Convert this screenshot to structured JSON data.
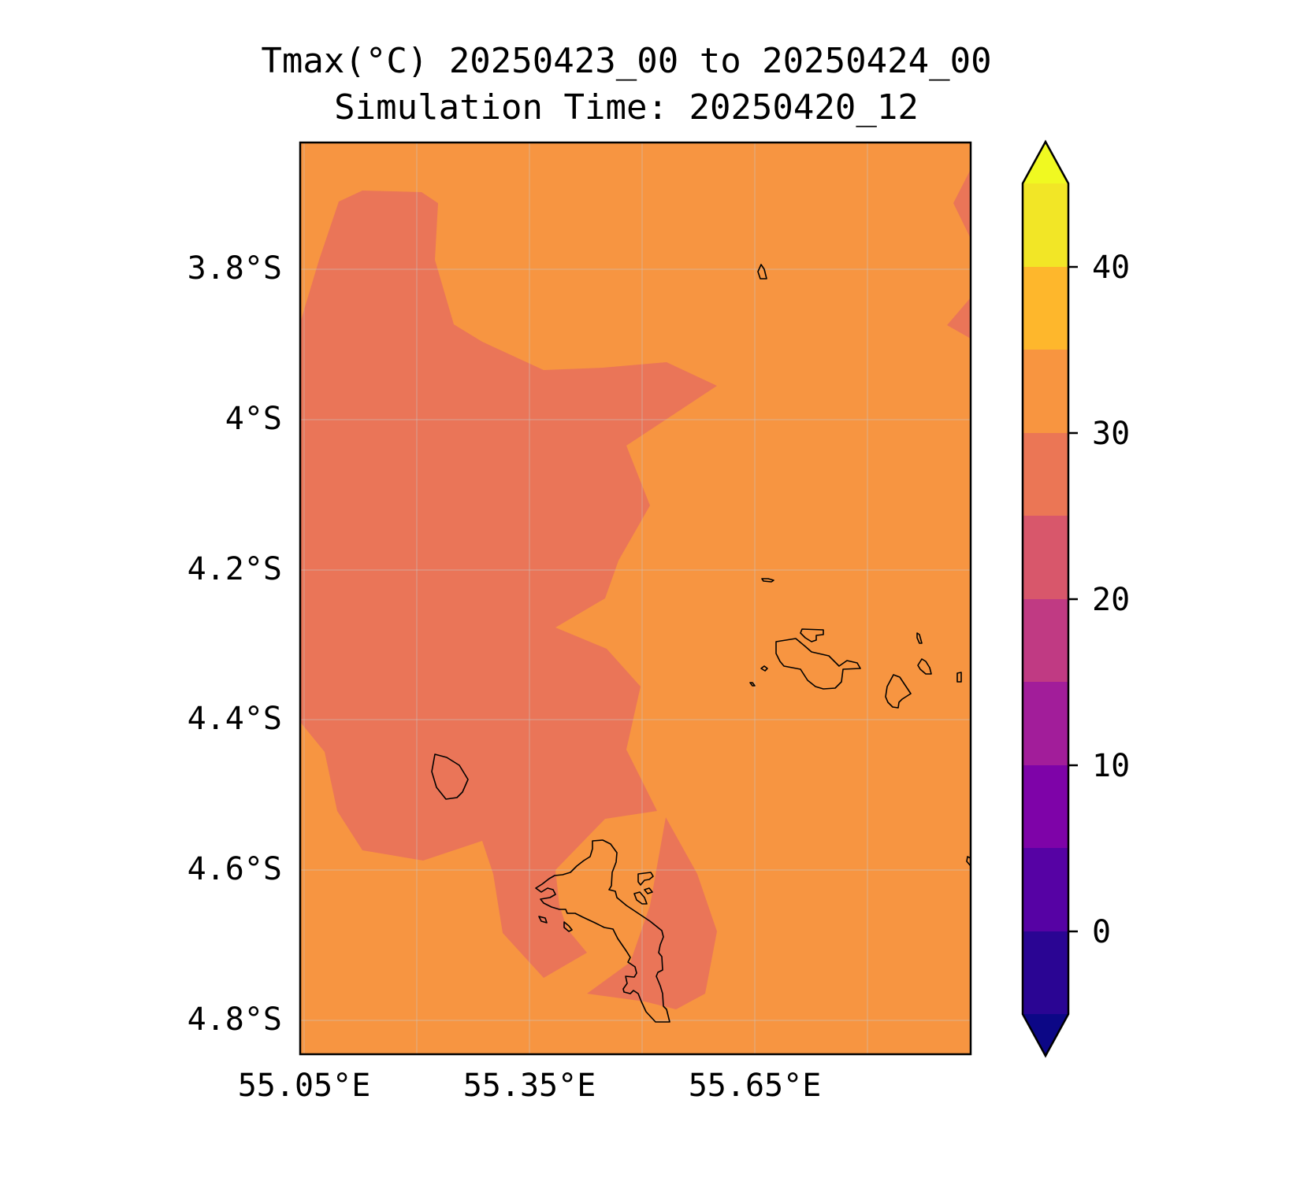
{
  "title": {
    "line1": "Tmax(°C) 20250423_00 to 20250424_00",
    "line2": "Simulation Time: 20250420_12"
  },
  "map": {
    "y_tick_labels": [
      "3.8°S",
      "4°S",
      "4.2°S",
      "4.4°S",
      "4.6°S",
      "4.8°S"
    ],
    "x_tick_labels": [
      "55.05°E",
      "55.35°E",
      "55.65°E"
    ],
    "gridlines": true,
    "fill_levels_present": [
      "25–30",
      "30–35"
    ]
  },
  "colorbar": {
    "tick_labels": [
      "40",
      "30",
      "20",
      "10",
      "0"
    ],
    "extend": "both",
    "colors": [
      "#0c0786",
      "#2a0593",
      "#5602a4",
      "#7e03a8",
      "#a21d9a",
      "#c03a83",
      "#d8576b",
      "#eb7655",
      "#f89540",
      "#feb72c",
      "#f2e626",
      "#f0f921"
    ]
  },
  "colors": {
    "field_30_35": "#f79541",
    "field_25_30": "#ea7558",
    "coastline": "#000000"
  }
}
